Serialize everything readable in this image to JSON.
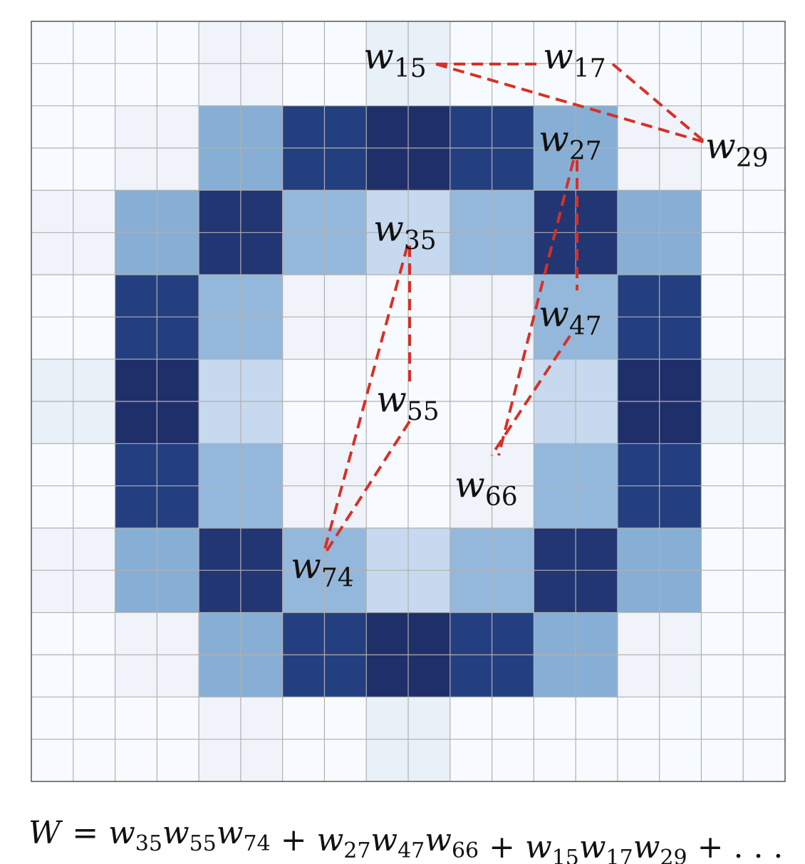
{
  "nodes": [
    {
      "base": "w",
      "sub": "15"
    },
    {
      "base": "w",
      "sub": "17"
    },
    {
      "base": "w",
      "sub": "27"
    },
    {
      "base": "w",
      "sub": "29"
    },
    {
      "base": "w",
      "sub": "35"
    },
    {
      "base": "w",
      "sub": "47"
    },
    {
      "base": "w",
      "sub": "55"
    },
    {
      "base": "w",
      "sub": "66"
    },
    {
      "base": "w",
      "sub": "74"
    }
  ],
  "formula": {
    "lhs": "W",
    "eq": "=",
    "terms": [
      [
        {
          "base": "w",
          "sub": "35"
        },
        {
          "base": "w",
          "sub": "55"
        },
        {
          "base": "w",
          "sub": "74"
        }
      ],
      [
        {
          "base": "w",
          "sub": "27"
        },
        {
          "base": "w",
          "sub": "47"
        },
        {
          "base": "w",
          "sub": "66"
        }
      ],
      [
        {
          "base": "w",
          "sub": "15"
        },
        {
          "base": "w",
          "sub": "17"
        },
        {
          "base": "w",
          "sub": "29"
        }
      ]
    ],
    "plus": "+",
    "ellipsis": ". . ."
  }
}
